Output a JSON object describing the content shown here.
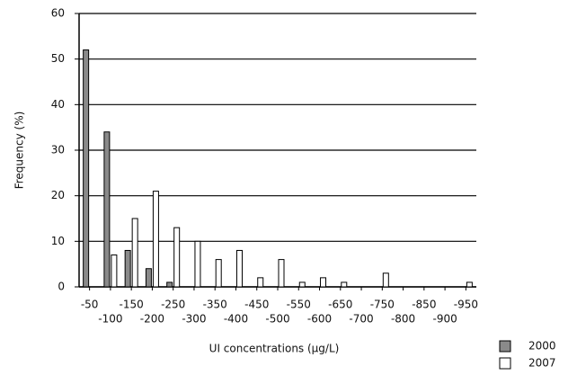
{
  "chart_data": {
    "type": "bar",
    "x_label": "UI concentrations (µg/L)",
    "y_label": "Frequency (%)",
    "categories": [
      "-50",
      "-100",
      "-150",
      "-200",
      "-250",
      "-300",
      "-350",
      "-400",
      "-450",
      "-500",
      "-550",
      "-600",
      "-650",
      "-700",
      "-750",
      "-800",
      "-850",
      "-900",
      "-950"
    ],
    "series": [
      {
        "name": "2000",
        "color": "#8a8a8a",
        "values": [
          52,
          34,
          8,
          4,
          1,
          0,
          0,
          0,
          0,
          0,
          0,
          0,
          0,
          0,
          0,
          0,
          0,
          0,
          0
        ]
      },
      {
        "name": "2007",
        "color": "#ffffff",
        "values": [
          0,
          7,
          15,
          21,
          13,
          10,
          6,
          8,
          2,
          6,
          1,
          2,
          1,
          0,
          3,
          0,
          0,
          0,
          1
        ]
      }
    ],
    "ylim": [
      0,
      60
    ],
    "yticks": [
      0,
      10,
      20,
      30,
      40,
      50,
      60
    ],
    "grid": true
  }
}
